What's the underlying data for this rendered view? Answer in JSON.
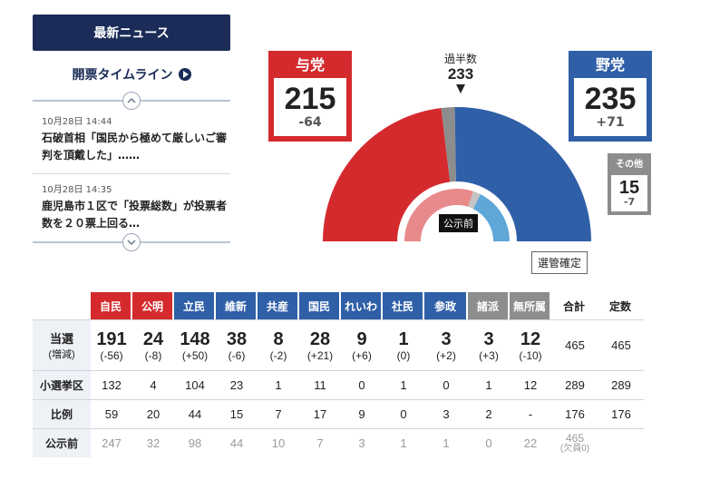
{
  "news": {
    "header": "最新ニュース",
    "timeline_link": "開票タイムライン",
    "items": [
      {
        "date": "10月28日 14:44",
        "text": "石破首相「国民から極めて厳しいご審判を頂戴した」……"
      },
      {
        "date": "10月28日 14:35",
        "text": "鹿児島市１区で「投票総数」が投票者数を２０票上回る…"
      }
    ]
  },
  "seats": {
    "ruling": {
      "label": "与党",
      "count": "215",
      "diff": "-64",
      "color": "#d42a2e"
    },
    "opposition": {
      "label": "野党",
      "count": "235",
      "diff": "+71",
      "color": "#2f5fa7"
    },
    "other": {
      "label": "その他",
      "count": "15",
      "diff": "-7",
      "color": "#8d8d8d"
    },
    "majority_label": "過半数",
    "majority_count": "233",
    "pre_election_label": "公示前",
    "confirmed_label": "選管確定"
  },
  "table": {
    "parties": [
      {
        "name": "自民",
        "color": "#d42a2e"
      },
      {
        "name": "公明",
        "color": "#d42a2e"
      },
      {
        "name": "立民",
        "color": "#2f5fa7"
      },
      {
        "name": "維新",
        "color": "#2f5fa7"
      },
      {
        "name": "共産",
        "color": "#2f5fa7"
      },
      {
        "name": "国民",
        "color": "#2f5fa7"
      },
      {
        "name": "れいわ",
        "color": "#2f5fa7"
      },
      {
        "name": "社民",
        "color": "#2f5fa7"
      },
      {
        "name": "参政",
        "color": "#2f5fa7"
      },
      {
        "name": "諸派",
        "color": "#8d8d8d"
      },
      {
        "name": "無所属",
        "color": "#8d8d8d"
      }
    ],
    "total_label": "合計",
    "capacity_label": "定数",
    "elected_label": "当選",
    "elected_sub": "(増減)",
    "elected": [
      "191",
      "24",
      "148",
      "38",
      "8",
      "28",
      "9",
      "1",
      "3",
      "3",
      "12"
    ],
    "elected_diff": [
      "(-56)",
      "(-8)",
      "(+50)",
      "(-6)",
      "(-2)",
      "(+21)",
      "(+6)",
      "(0)",
      "(+2)",
      "(+3)",
      "(-10)"
    ],
    "elected_total": "465",
    "elected_capacity": "465",
    "district_label": "小選挙区",
    "district": [
      "132",
      "4",
      "104",
      "23",
      "1",
      "11",
      "0",
      "1",
      "0",
      "1",
      "12"
    ],
    "district_total": "289",
    "district_capacity": "289",
    "pr_label": "比例",
    "pr": [
      "59",
      "20",
      "44",
      "15",
      "7",
      "17",
      "9",
      "0",
      "3",
      "2",
      "-"
    ],
    "pr_total": "176",
    "pr_capacity": "176",
    "pre_label": "公示前",
    "pre": [
      "247",
      "32",
      "98",
      "44",
      "10",
      "7",
      "3",
      "1",
      "1",
      "0",
      "22"
    ],
    "pre_total": "465",
    "pre_note": "(欠員0)"
  }
}
